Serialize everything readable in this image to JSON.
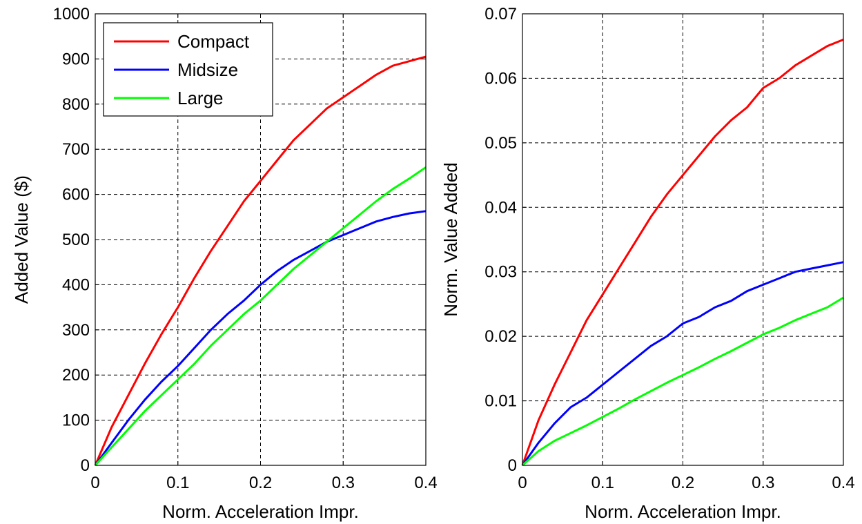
{
  "chart_data": [
    {
      "type": "line",
      "title": "",
      "xlabel": "Norm. Acceleration Impr.",
      "ylabel": "Added Value ($)",
      "xlim": [
        0,
        0.4
      ],
      "ylim": [
        0,
        1000
      ],
      "xticks": [
        0,
        0.1,
        0.2,
        0.3,
        0.4
      ],
      "xtick_labels": [
        "0",
        "0.1",
        "0.2",
        "0.3",
        "0.4"
      ],
      "yticks": [
        0,
        100,
        200,
        300,
        400,
        500,
        600,
        700,
        800,
        900,
        1000
      ],
      "ytick_labels": [
        "0",
        "100",
        "200",
        "300",
        "400",
        "500",
        "600",
        "700",
        "800",
        "900",
        "1000"
      ],
      "grid": true,
      "legend_position": "top-left",
      "x": [
        0,
        0.02,
        0.04,
        0.06,
        0.08,
        0.1,
        0.12,
        0.14,
        0.16,
        0.18,
        0.2,
        0.22,
        0.24,
        0.26,
        0.28,
        0.3,
        0.32,
        0.34,
        0.36,
        0.38,
        0.4
      ],
      "series": [
        {
          "name": "Compact",
          "color": "#ff0000",
          "values": [
            0,
            85,
            155,
            225,
            290,
            350,
            415,
            475,
            530,
            585,
            630,
            675,
            720,
            755,
            790,
            815,
            840,
            865,
            885,
            895,
            905
          ]
        },
        {
          "name": "Midsize",
          "color": "#0000ff",
          "values": [
            0,
            50,
            100,
            145,
            185,
            220,
            260,
            300,
            335,
            365,
            400,
            430,
            455,
            475,
            495,
            510,
            525,
            540,
            550,
            558,
            563
          ]
        },
        {
          "name": "Large",
          "color": "#00ff00",
          "values": [
            0,
            40,
            80,
            120,
            155,
            190,
            225,
            265,
            300,
            335,
            365,
            400,
            435,
            465,
            495,
            525,
            555,
            585,
            612,
            635,
            660
          ]
        }
      ]
    },
    {
      "type": "line",
      "title": "",
      "xlabel": "Norm. Acceleration Impr.",
      "ylabel": "Norm. Value Added",
      "xlim": [
        0,
        0.4
      ],
      "ylim": [
        0,
        0.07
      ],
      "xticks": [
        0,
        0.1,
        0.2,
        0.3,
        0.4
      ],
      "xtick_labels": [
        "0",
        "0.1",
        "0.2",
        "0.3",
        "0.4"
      ],
      "yticks": [
        0,
        0.01,
        0.02,
        0.03,
        0.04,
        0.05,
        0.06,
        0.07
      ],
      "ytick_labels": [
        "0",
        "0.01",
        "0.02",
        "0.03",
        "0.04",
        "0.05",
        "0.06",
        "0.07"
      ],
      "grid": true,
      "x": [
        0,
        0.02,
        0.04,
        0.06,
        0.08,
        0.1,
        0.12,
        0.14,
        0.16,
        0.18,
        0.2,
        0.22,
        0.24,
        0.26,
        0.28,
        0.3,
        0.32,
        0.34,
        0.36,
        0.38,
        0.4
      ],
      "series": [
        {
          "name": "Compact",
          "color": "#ff0000",
          "values": [
            0,
            0.007,
            0.0125,
            0.0175,
            0.0225,
            0.0265,
            0.0305,
            0.0345,
            0.0385,
            0.042,
            0.045,
            0.048,
            0.051,
            0.0535,
            0.0555,
            0.0585,
            0.06,
            0.062,
            0.0635,
            0.065,
            0.066
          ]
        },
        {
          "name": "Midsize",
          "color": "#0000ff",
          "values": [
            0,
            0.0035,
            0.0065,
            0.009,
            0.0105,
            0.0125,
            0.0145,
            0.0165,
            0.0185,
            0.02,
            0.022,
            0.023,
            0.0245,
            0.0255,
            0.027,
            0.028,
            0.029,
            0.03,
            0.0305,
            0.031,
            0.0315
          ]
        },
        {
          "name": "Large",
          "color": "#00ff00",
          "values": [
            0,
            0.0022,
            0.0038,
            0.005,
            0.0062,
            0.0075,
            0.0088,
            0.0102,
            0.0115,
            0.0128,
            0.014,
            0.0152,
            0.0165,
            0.0177,
            0.019,
            0.0203,
            0.0213,
            0.0225,
            0.0235,
            0.0245,
            0.026
          ]
        }
      ]
    }
  ]
}
